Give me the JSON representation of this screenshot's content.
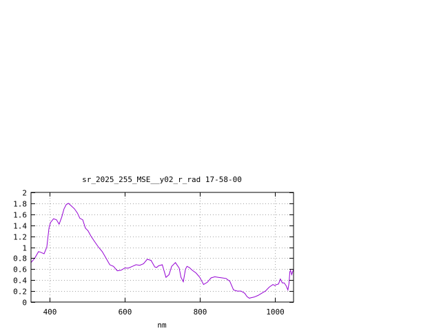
{
  "chart_data": {
    "type": "line",
    "title": "sr_2025_255_MSE__y02_r_rad 17-58-00",
    "xlabel": "nm",
    "ylabel": "",
    "xlim": [
      350,
      1050
    ],
    "ylim": [
      0,
      2
    ],
    "xticks": [
      400,
      600,
      800,
      1000
    ],
    "yticks": [
      0,
      0.2,
      0.4,
      0.6,
      0.8,
      1,
      1.2,
      1.4,
      1.6,
      1.8,
      2
    ],
    "xtick_labels": [
      "400",
      "600",
      "800",
      "1000"
    ],
    "ytick_labels": [
      "0",
      "0.2",
      "0.4",
      "0.6",
      "0.8",
      "1",
      "1.2",
      "1.4",
      "1.6",
      "1.8",
      "2"
    ],
    "grid": true,
    "line_color": "#9400d3",
    "series": [
      {
        "x": [
          350,
          360,
          370,
          375,
          385,
          392,
          398,
          402,
          410,
          418,
          425,
          432,
          438,
          444,
          450,
          458,
          466,
          474,
          480,
          488,
          495,
          502,
          510,
          520,
          530,
          540,
          550,
          560,
          570,
          580,
          590,
          600,
          610,
          620,
          630,
          640,
          650,
          660,
          670,
          680,
          685,
          690,
          700,
          710,
          718,
          725,
          735,
          745,
          750,
          756,
          762,
          766,
          772,
          780,
          790,
          800,
          810,
          820,
          830,
          840,
          850,
          860,
          870,
          880,
          890,
          900,
          910,
          920,
          926,
          932,
          938,
          945,
          955,
          965,
          975,
          985,
          995,
          1000,
          1005,
          1010,
          1015,
          1020,
          1025,
          1030,
          1035,
          1038,
          1040,
          1042,
          1045,
          1050
        ],
        "y": [
          0.72,
          0.8,
          0.92,
          0.91,
          0.88,
          1.0,
          1.35,
          1.45,
          1.52,
          1.5,
          1.42,
          1.55,
          1.7,
          1.78,
          1.8,
          1.75,
          1.7,
          1.62,
          1.53,
          1.5,
          1.35,
          1.3,
          1.2,
          1.1,
          1.0,
          0.92,
          0.8,
          0.68,
          0.65,
          0.57,
          0.58,
          0.62,
          0.62,
          0.65,
          0.68,
          0.67,
          0.7,
          0.78,
          0.76,
          0.64,
          0.63,
          0.66,
          0.68,
          0.45,
          0.5,
          0.65,
          0.72,
          0.62,
          0.45,
          0.37,
          0.6,
          0.65,
          0.63,
          0.58,
          0.53,
          0.45,
          0.32,
          0.36,
          0.44,
          0.46,
          0.45,
          0.44,
          0.43,
          0.38,
          0.22,
          0.2,
          0.2,
          0.16,
          0.1,
          0.07,
          0.08,
          0.09,
          0.12,
          0.16,
          0.2,
          0.27,
          0.32,
          0.3,
          0.32,
          0.33,
          0.42,
          0.35,
          0.35,
          0.3,
          0.22,
          0.35,
          0.55,
          0.58,
          0.5,
          0.6
        ]
      }
    ]
  }
}
